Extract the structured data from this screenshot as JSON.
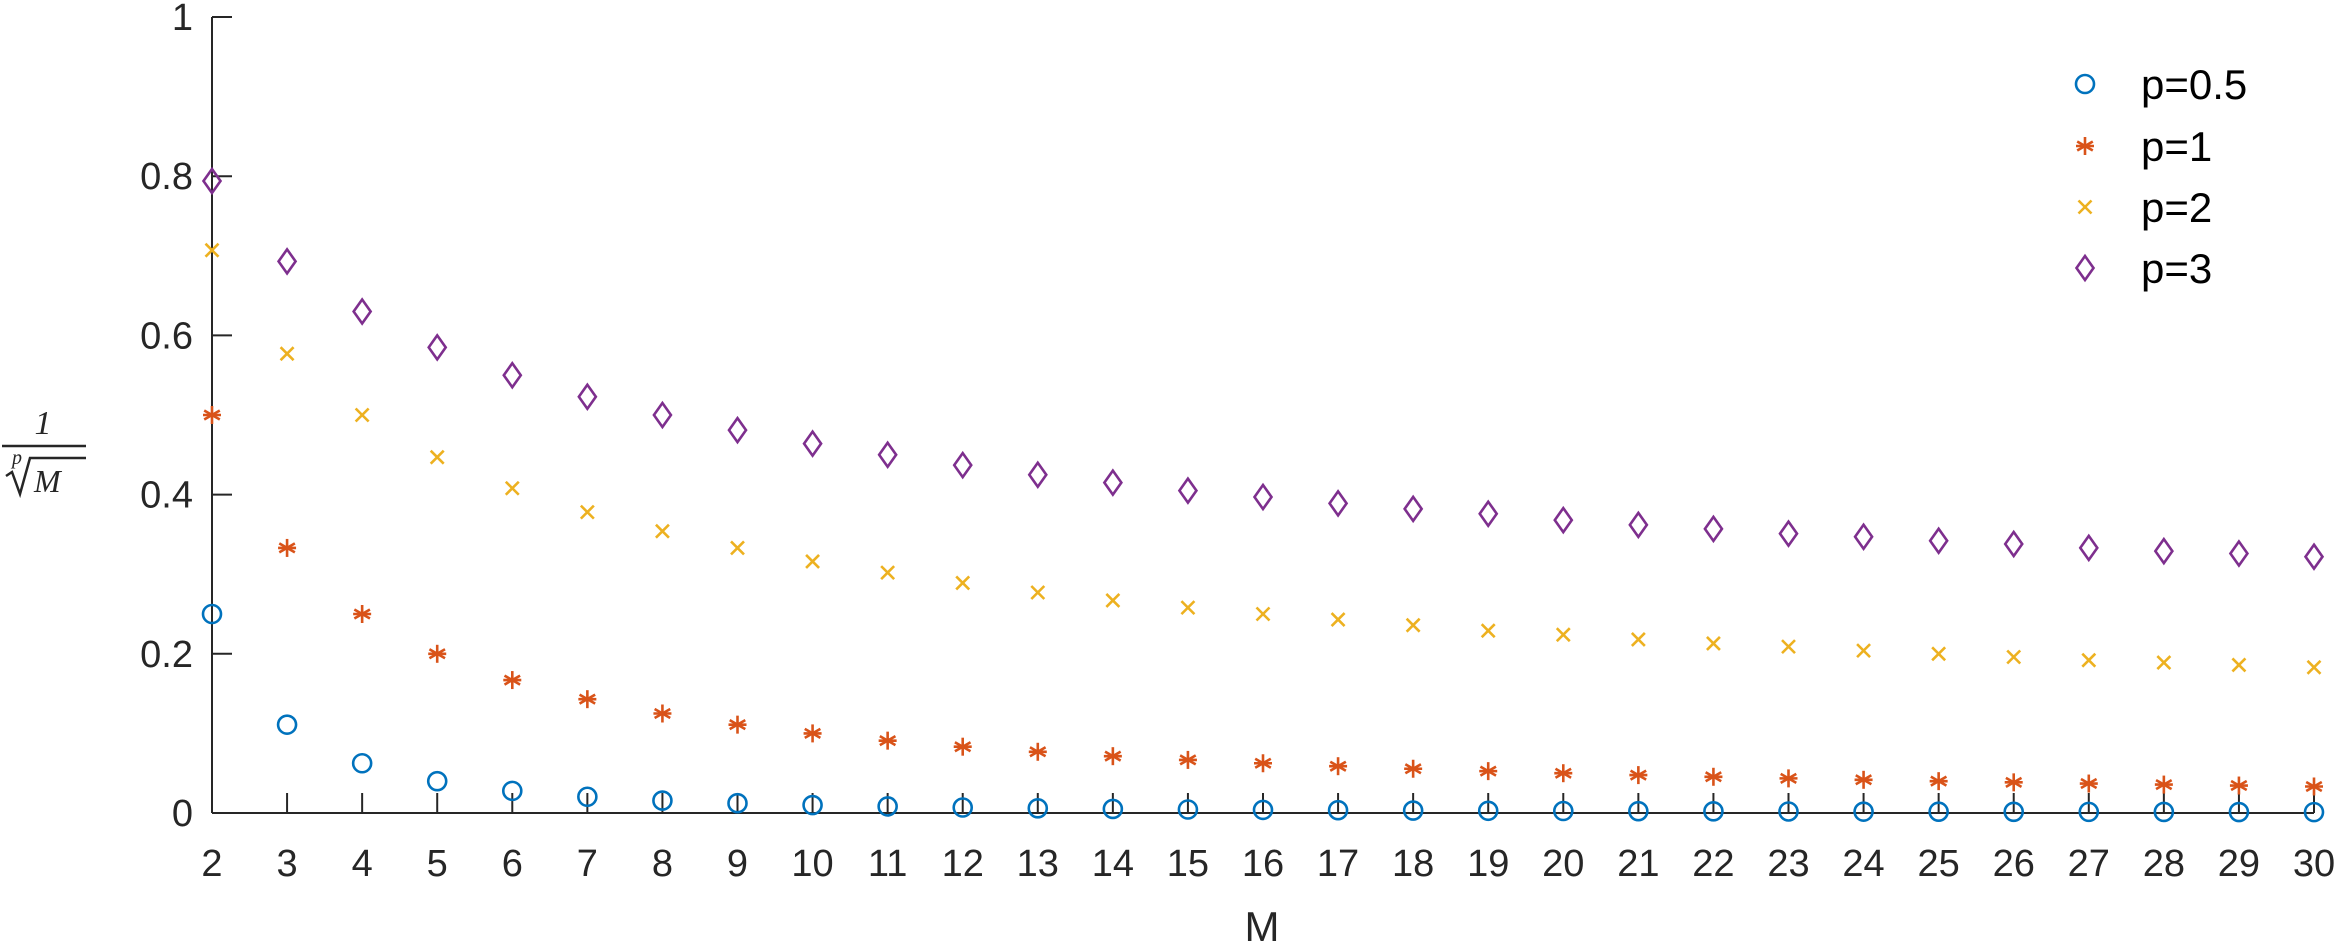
{
  "chart_data": {
    "type": "scatter",
    "x": [
      2,
      3,
      4,
      5,
      6,
      7,
      8,
      9,
      10,
      11,
      12,
      13,
      14,
      15,
      16,
      17,
      18,
      19,
      20,
      21,
      22,
      23,
      24,
      25,
      26,
      27,
      28,
      29,
      30
    ],
    "series": [
      {
        "name": "p=0.5",
        "marker": "circle",
        "color": "#0072BD",
        "values": [
          0.25,
          0.111,
          0.0625,
          0.04,
          0.0278,
          0.0204,
          0.0156,
          0.0123,
          0.01,
          0.0083,
          0.0069,
          0.0059,
          0.0051,
          0.0044,
          0.0039,
          0.0035,
          0.0031,
          0.0028,
          0.0025,
          0.0023,
          0.0021,
          0.0019,
          0.0017,
          0.0016,
          0.0015,
          0.0014,
          0.0013,
          0.0012,
          0.0011
        ]
      },
      {
        "name": "p=1",
        "marker": "asterisk",
        "color": "#D95319",
        "values": [
          0.5,
          0.333,
          0.25,
          0.2,
          0.167,
          0.143,
          0.125,
          0.111,
          0.1,
          0.0909,
          0.0833,
          0.0769,
          0.0714,
          0.0667,
          0.0625,
          0.0588,
          0.0556,
          0.0526,
          0.05,
          0.0476,
          0.0455,
          0.0435,
          0.0417,
          0.04,
          0.0385,
          0.037,
          0.0357,
          0.0345,
          0.0333
        ]
      },
      {
        "name": "p=2",
        "marker": "cross",
        "color": "#EDB120",
        "values": [
          0.707,
          0.577,
          0.5,
          0.447,
          0.408,
          0.378,
          0.354,
          0.333,
          0.316,
          0.302,
          0.289,
          0.277,
          0.267,
          0.258,
          0.25,
          0.243,
          0.236,
          0.229,
          0.224,
          0.218,
          0.213,
          0.209,
          0.204,
          0.2,
          0.196,
          0.192,
          0.189,
          0.186,
          0.183
        ]
      },
      {
        "name": "p=3",
        "marker": "diamond",
        "color": "#7E2F8E",
        "values": [
          0.794,
          0.693,
          0.63,
          0.585,
          0.55,
          0.523,
          0.5,
          0.481,
          0.464,
          0.45,
          0.437,
          0.425,
          0.415,
          0.405,
          0.397,
          0.389,
          0.382,
          0.376,
          0.368,
          0.362,
          0.357,
          0.351,
          0.347,
          0.342,
          0.338,
          0.333,
          0.329,
          0.326,
          0.322
        ]
      }
    ],
    "xlabel": "M",
    "ylabel": {
      "numerator": "1",
      "index": "p",
      "radicand": "M"
    },
    "xlim": [
      2,
      30
    ],
    "ylim": [
      0,
      1
    ],
    "xticks": [
      "2",
      "3",
      "4",
      "5",
      "6",
      "7",
      "8",
      "9",
      "10",
      "11",
      "12",
      "13",
      "14",
      "15",
      "16",
      "17",
      "18",
      "19",
      "20",
      "21",
      "22",
      "23",
      "24",
      "25",
      "26",
      "27",
      "28",
      "29",
      "30"
    ],
    "yticks": [
      "0",
      "0.2",
      "0.4",
      "0.6",
      "0.8",
      "1"
    ],
    "grid": false,
    "legend": "top-right"
  }
}
